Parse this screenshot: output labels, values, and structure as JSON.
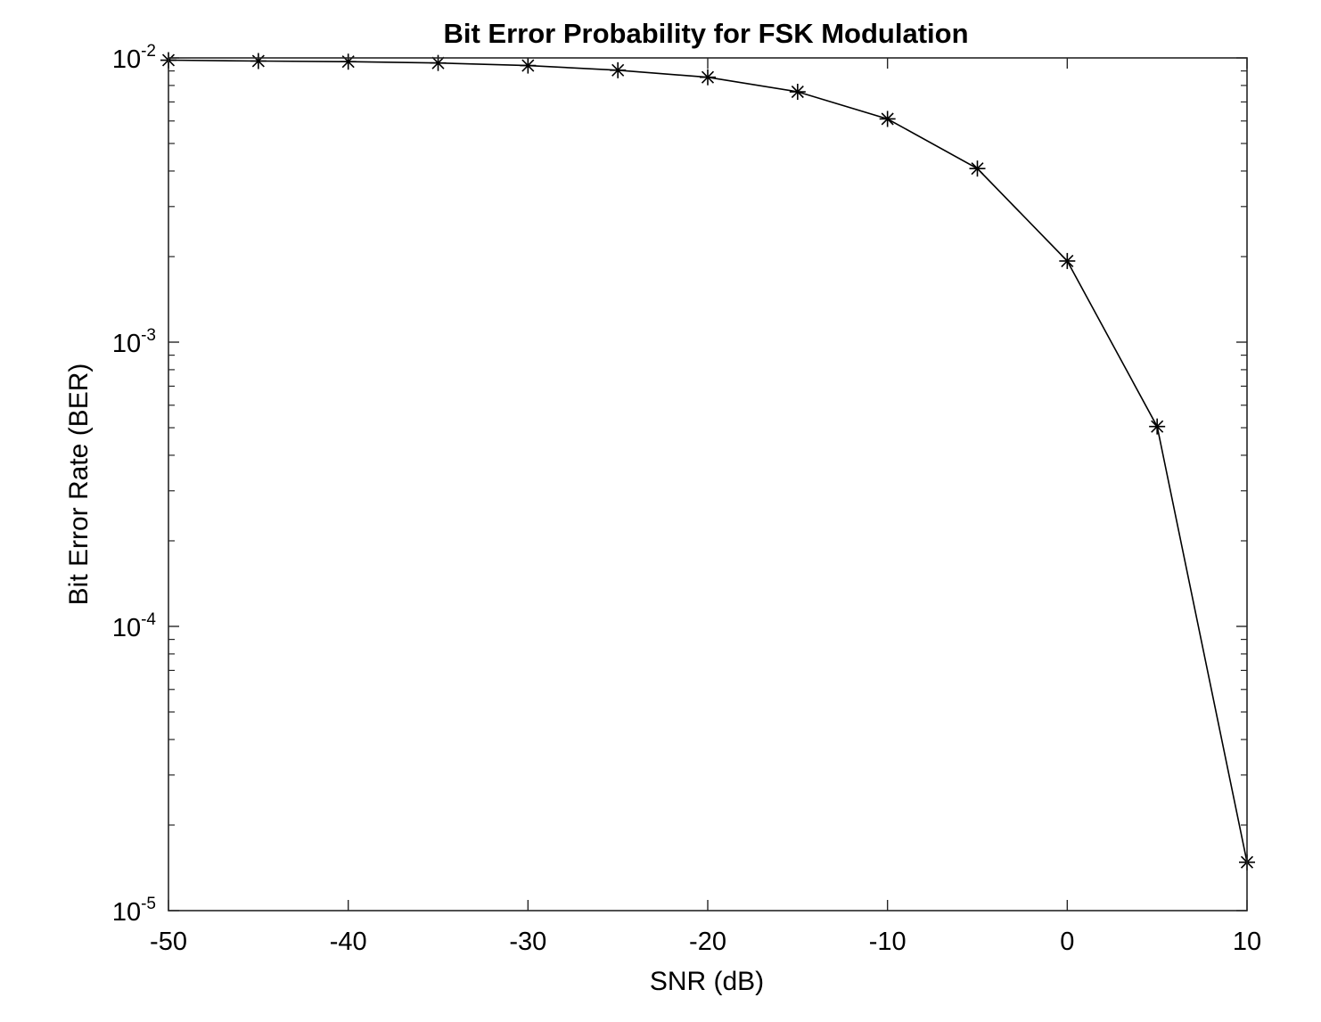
{
  "colors": {
    "background": "#ffffff",
    "axes": "#262626",
    "series": "#000000"
  },
  "chart_data": {
    "type": "line",
    "title": "Bit Error Probability for FSK Modulation",
    "xlabel": "SNR (dB)",
    "ylabel": "Bit Error Rate (BER)",
    "xlim": [
      -50,
      10
    ],
    "ylim": [
      1e-05,
      0.01
    ],
    "yscale": "log",
    "grid": false,
    "box": true,
    "marker": "asterisk",
    "x_ticks": [
      -50,
      -40,
      -30,
      -20,
      -10,
      0,
      10
    ],
    "x_tick_labels": [
      "-50",
      "-40",
      "-30",
      "-20",
      "-10",
      "0",
      "10"
    ],
    "y_ticks": [
      {
        "value": 0.01,
        "base": "10",
        "exp": "-2"
      },
      {
        "value": 0.001,
        "base": "10",
        "exp": "-3"
      },
      {
        "value": 0.0001,
        "base": "10",
        "exp": "-4"
      },
      {
        "value": 1e-05,
        "base": "10",
        "exp": "-5"
      }
    ],
    "x": [
      -50,
      -45,
      -40,
      -35,
      -30,
      -25,
      -20,
      -15,
      -10,
      -5,
      0,
      5,
      10
    ],
    "y": [
      0.00982,
      0.00975,
      0.0097,
      0.0096,
      0.0094,
      0.00905,
      0.00855,
      0.0076,
      0.0061,
      0.00408,
      0.00193,
      0.000505,
      1.48e-05
    ]
  }
}
